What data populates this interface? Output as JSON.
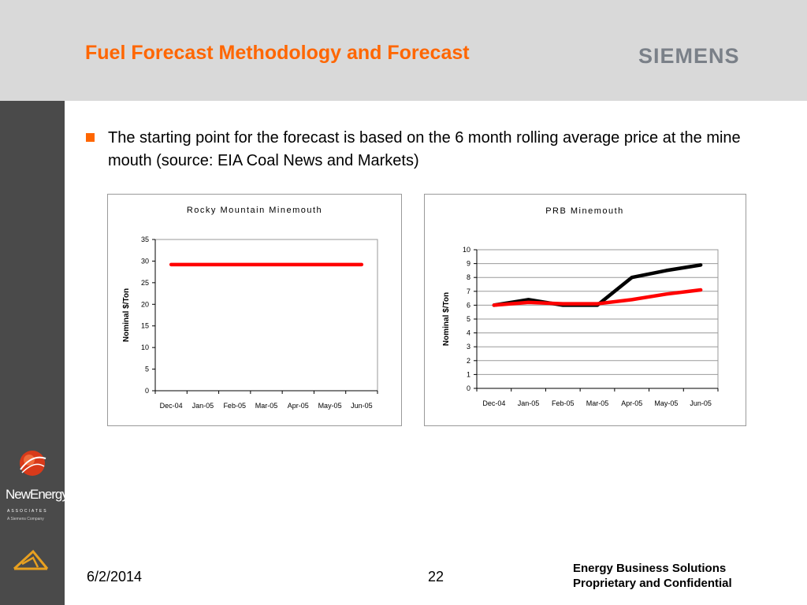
{
  "header": {
    "title": "Fuel Forecast Methodology and Forecast",
    "brand": "SIEMENS"
  },
  "sidebar": {
    "logo_word": "NewEnergy",
    "logo_sub": "ASSOCIATES",
    "logo_company": "A Siemens Company"
  },
  "bullet": {
    "text": "The starting point for the forecast is based on the 6 month rolling average price at the mine mouth (source:  EIA Coal News and Markets)"
  },
  "chart_data": [
    {
      "type": "line",
      "title": "Rocky Mountain Minemouth",
      "ylabel": "Nominal $/Ton",
      "categories": [
        "Dec-04",
        "Jan-05",
        "Feb-05",
        "Mar-05",
        "Apr-05",
        "May-05",
        "Jun-05"
      ],
      "yticks": [
        0,
        5,
        10,
        15,
        20,
        25,
        30,
        35
      ],
      "ylim": [
        0,
        35
      ],
      "grid": false,
      "series": [
        {
          "color": "#ff0000",
          "values": [
            29.2,
            29.2,
            29.2,
            29.2,
            29.2,
            29.2,
            29.2
          ]
        }
      ]
    },
    {
      "type": "line",
      "title": "PRB Minemouth",
      "ylabel": "Nominal $/Ton",
      "categories": [
        "Dec-04",
        "Jan-05",
        "Feb-05",
        "Mar-05",
        "Apr-05",
        "May-05",
        "Jun-05"
      ],
      "yticks": [
        0,
        1,
        2,
        3,
        4,
        5,
        6,
        7,
        8,
        9,
        10
      ],
      "ylim": [
        0,
        10
      ],
      "grid": true,
      "series": [
        {
          "color": "#000000",
          "values": [
            6.0,
            6.4,
            6.0,
            6.0,
            8.0,
            8.5,
            8.9
          ]
        },
        {
          "color": "#ff0000",
          "values": [
            6.0,
            6.2,
            6.1,
            6.1,
            6.4,
            6.8,
            7.1
          ]
        }
      ]
    }
  ],
  "footer": {
    "date": "6/2/2014",
    "page": "22",
    "line1": "Energy Business Solutions",
    "line2": "Proprietary and Confidential"
  }
}
